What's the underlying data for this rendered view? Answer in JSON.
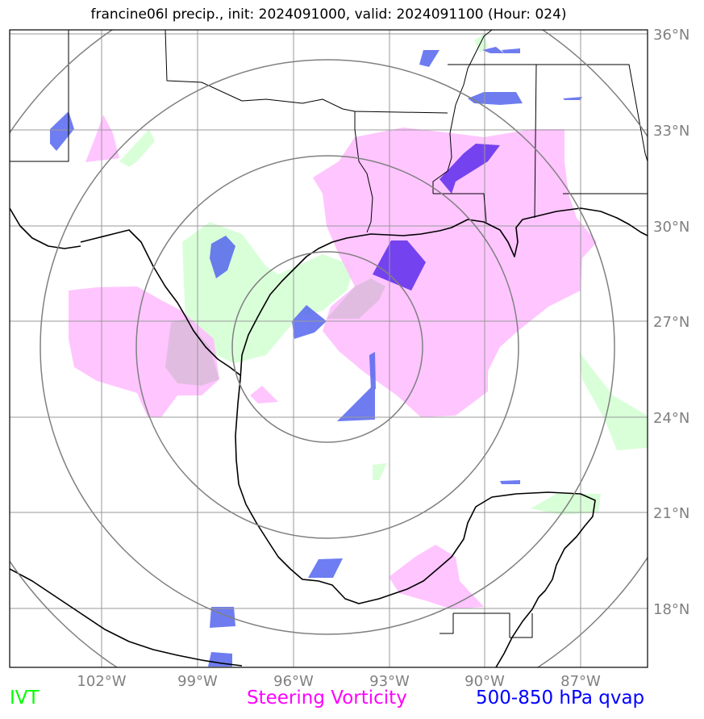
{
  "title": "francine06l precip., init: 2024091000, valid: 2024091100 (Hour: 024)",
  "map": {
    "lat_ticks": [
      "36°N",
      "33°N",
      "30°N",
      "27°N",
      "24°N",
      "21°N",
      "18°N"
    ],
    "lon_ticks": [
      "102°W",
      "99°W",
      "96°W",
      "93°W",
      "90°W",
      "87°W"
    ],
    "extent": {
      "lon_min": -104.9,
      "lon_max": -85.0,
      "lat_min": 16.3,
      "lat_max": 36.3
    },
    "range_rings_center": {
      "lon": -95.0,
      "lat": 26.3
    },
    "range_rings_count": 4
  },
  "legend": {
    "ivt": {
      "label": "IVT",
      "color": "#00ff00"
    },
    "vorticity": {
      "label": "Steering Vorticity",
      "color": "#ff00ff"
    },
    "qvap": {
      "label": "500-850 hPa qvap",
      "color": "#0000ff"
    }
  },
  "colors": {
    "ivt_fill": "#ccffcc",
    "vorticity_fill": "#ffbbff",
    "qvap_fill": "#5566ee",
    "qvap_strong": "#6633ee",
    "grid": "#999999",
    "rings": "#808080",
    "coast": "#000000"
  }
}
